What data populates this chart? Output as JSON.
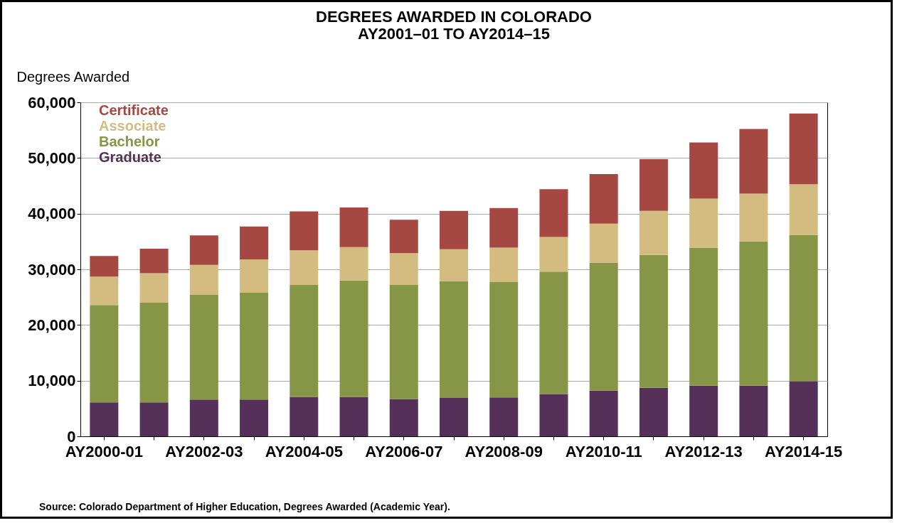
{
  "chart_data": {
    "type": "bar",
    "stacked": true,
    "title": "DEGREES AWARDED IN COLORADO\nAY2001–01 TO AY2014–15",
    "ylabel": "Degrees Awarded",
    "categories": [
      "AY2000-01",
      null,
      "AY2002-03",
      null,
      "AY2004-05",
      null,
      "AY2006-07",
      null,
      "AY2008-09",
      null,
      "AY2010-11",
      null,
      "AY2012-13",
      null,
      "AY2014-15"
    ],
    "series": [
      {
        "name": "Graduate",
        "color": "#553159",
        "values": [
          6100,
          6100,
          6600,
          6600,
          7100,
          7100,
          6700,
          6900,
          7000,
          7600,
          8200,
          8700,
          9100,
          9100,
          9900
        ]
      },
      {
        "name": "Bachelor",
        "color": "#869546",
        "values": [
          17500,
          17900,
          18800,
          19200,
          20100,
          20900,
          20500,
          21000,
          20700,
          22000,
          23000,
          23900,
          24800,
          25900,
          26300
        ]
      },
      {
        "name": "Associate",
        "color": "#d4bc81",
        "values": [
          5100,
          5300,
          5400,
          6000,
          6200,
          6000,
          5700,
          5700,
          6200,
          6200,
          7000,
          7900,
          8800,
          8600,
          9100
        ]
      },
      {
        "name": "Certificate",
        "color": "#a44841",
        "values": [
          3700,
          4400,
          5300,
          5900,
          7000,
          7100,
          6000,
          6900,
          7100,
          8600,
          8900,
          9300,
          10100,
          11600,
          12700
        ]
      }
    ],
    "ylim": [
      0,
      60000
    ],
    "yticks": [
      0,
      {
        "value": 10000,
        "label": "10,000"
      },
      {
        "value": 20000,
        "label": "20,000"
      },
      {
        "value": 30000,
        "label": "30,000"
      },
      {
        "value": 40000,
        "label": "40,000"
      },
      {
        "value": 50000,
        "label": "50,000"
      },
      {
        "value": 60000,
        "label": "60,000"
      }
    ],
    "grid": "y",
    "legend": "top left",
    "annotations": [
      "Source: Colorado Department of Higher Education, Degrees Awarded (Academic Year)."
    ]
  }
}
